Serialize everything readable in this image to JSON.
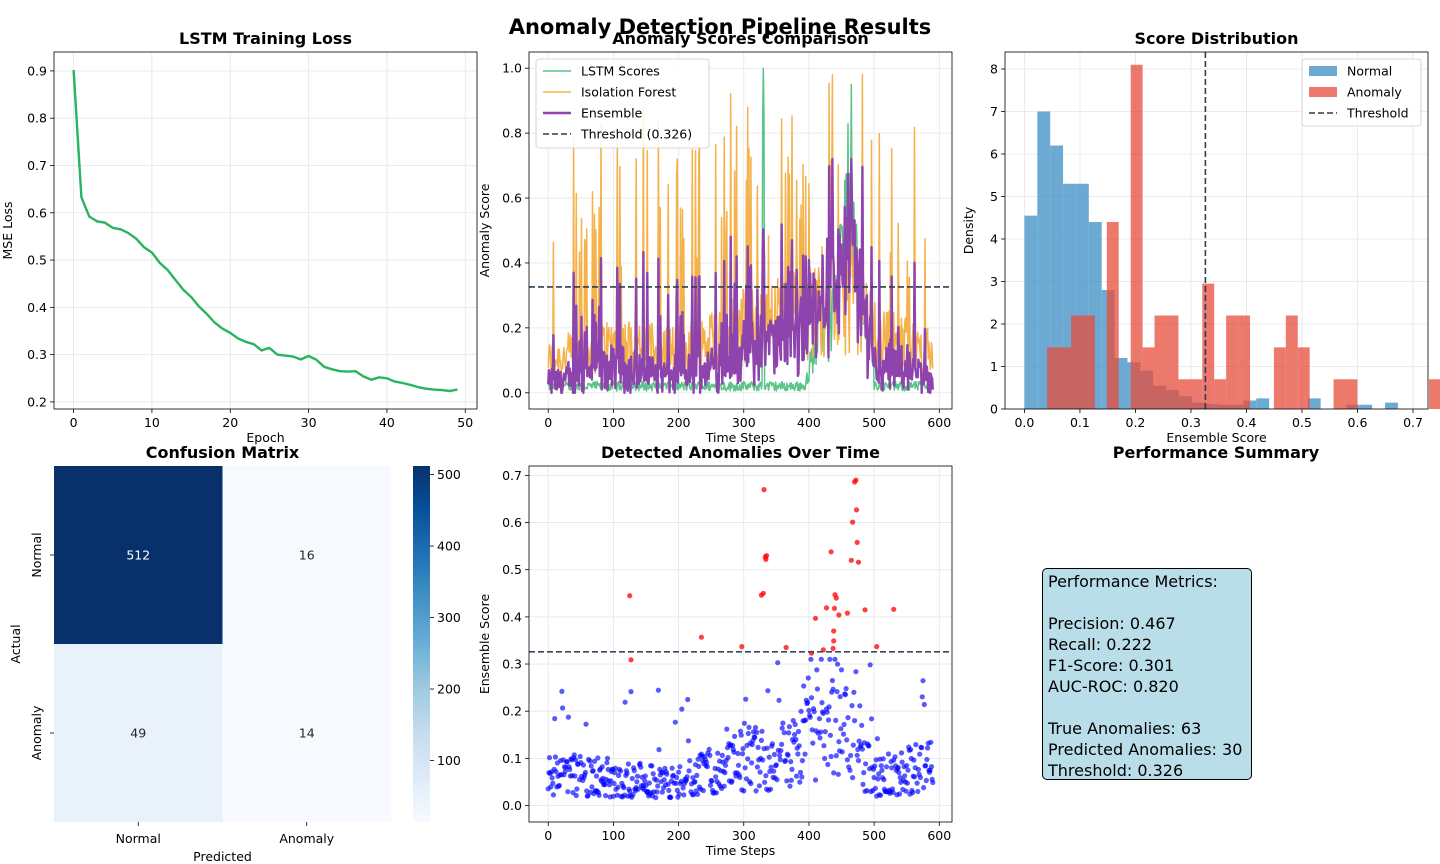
{
  "figure": {
    "title": "Anomaly Detection Pipeline Results"
  },
  "panels": {
    "loss": {
      "title": "LSTM Training Loss",
      "xlabel": "Epoch",
      "ylabel": "MSE Loss"
    },
    "scores": {
      "title": "Anomaly Scores Comparison",
      "xlabel": "Time Steps",
      "ylabel": "Anomaly Score"
    },
    "dist": {
      "title": "Score Distribution",
      "xlabel": "Ensemble Score",
      "ylabel": "Density"
    },
    "cm": {
      "title": "Confusion Matrix",
      "xlabel": "Predicted",
      "ylabel": "Actual"
    },
    "detected": {
      "title": "Detected Anomalies Over Time",
      "xlabel": "Time Steps",
      "ylabel": "Ensemble Score"
    },
    "summary": {
      "title": "Performance Summary",
      "lines": [
        "Performance Metrics:",
        "",
        "Precision: 0.467",
        "Recall: 0.222",
        "F1-Score: 0.301",
        "AUC-ROC: 0.820",
        "",
        "True Anomalies: 63",
        "Predicted Anomalies: 30",
        "Threshold: 0.326"
      ]
    }
  },
  "chart_data": [
    {
      "id": "loss",
      "type": "line",
      "title": "LSTM Training Loss",
      "xlabel": "Epoch",
      "ylabel": "MSE Loss",
      "xlim": [
        -2.5,
        51.5
      ],
      "ylim": [
        0.185,
        0.94
      ],
      "xticks": [
        0,
        10,
        20,
        30,
        40,
        50
      ],
      "yticks": [
        0.2,
        0.3,
        0.4,
        0.5,
        0.6,
        0.7,
        0.8,
        0.9
      ],
      "grid": true,
      "color": "#2ab462",
      "x": [
        0,
        1,
        2,
        3,
        4,
        5,
        6,
        7,
        8,
        9,
        10,
        11,
        12,
        13,
        14,
        15,
        16,
        17,
        18,
        19,
        20,
        21,
        22,
        23,
        24,
        25,
        26,
        27,
        28,
        29,
        30,
        31,
        32,
        33,
        34,
        35,
        36,
        37,
        38,
        39,
        40,
        41,
        42,
        43,
        44,
        45,
        46,
        47,
        48,
        49
      ],
      "y": [
        0.902,
        0.633,
        0.592,
        0.582,
        0.579,
        0.568,
        0.565,
        0.557,
        0.545,
        0.527,
        0.516,
        0.494,
        0.479,
        0.458,
        0.437,
        0.422,
        0.402,
        0.386,
        0.368,
        0.355,
        0.346,
        0.334,
        0.327,
        0.322,
        0.309,
        0.314,
        0.3,
        0.298,
        0.296,
        0.29,
        0.297,
        0.289,
        0.274,
        0.269,
        0.265,
        0.264,
        0.265,
        0.254,
        0.247,
        0.252,
        0.25,
        0.243,
        0.24,
        0.236,
        0.231,
        0.228,
        0.226,
        0.225,
        0.223,
        0.226
      ]
    },
    {
      "id": "scores",
      "type": "line",
      "title": "Anomaly Scores Comparison",
      "xlabel": "Time Steps",
      "ylabel": "Anomaly Score",
      "xlim": [
        -29.5,
        619.5
      ],
      "ylim": [
        -0.05,
        1.05
      ],
      "xticks": [
        0,
        100,
        200,
        300,
        400,
        500,
        600
      ],
      "yticks": [
        0.0,
        0.2,
        0.4,
        0.6,
        0.8,
        1.0
      ],
      "grid": true,
      "legend": "top-left",
      "n_points": 591,
      "series": [
        {
          "name": "LSTM Scores",
          "color": "#5cc48a",
          "width": 1.5,
          "profile_x": [
            0,
            250,
            320,
            330,
            335,
            340,
            380,
            400,
            420,
            430,
            440,
            450,
            460,
            470,
            480,
            490,
            520,
            560,
            590
          ],
          "profile_y": [
            0.02,
            0.03,
            0.1,
            1.0,
            0.05,
            0.04,
            0.05,
            0.1,
            0.4,
            0.3,
            0.45,
            0.55,
            0.9,
            0.6,
            0.4,
            0.3,
            0.05,
            0.03,
            0.04
          ]
        },
        {
          "name": "Isolation Forest",
          "color": "#f5b24a",
          "width": 1.5,
          "profile_x": [
            0,
            100,
            200,
            300,
            400,
            470,
            500,
            590
          ],
          "profile_y": [
            0.1,
            0.15,
            0.13,
            0.2,
            0.25,
            0.3,
            0.18,
            0.12
          ]
        },
        {
          "name": "Ensemble",
          "color": "#8e44ad",
          "width": 2.4,
          "profile_x": [
            0,
            100,
            200,
            300,
            400,
            470,
            500,
            590
          ],
          "profile_y": [
            0.05,
            0.08,
            0.06,
            0.1,
            0.18,
            0.22,
            0.08,
            0.06
          ]
        }
      ],
      "threshold": {
        "name": "Threshold (0.326)",
        "value": 0.326,
        "color": "#2c3e50"
      }
    },
    {
      "id": "dist",
      "type": "histogram",
      "title": "Score Distribution",
      "xlabel": "Ensemble Score",
      "ylabel": "Density",
      "xlim": [
        -0.035,
        0.727
      ],
      "ylim": [
        0,
        8.4
      ],
      "xticks": [
        0.0,
        0.1,
        0.2,
        0.3,
        0.4,
        0.5,
        0.6,
        0.7
      ],
      "yticks": [
        0,
        1,
        2,
        3,
        4,
        5,
        6,
        7,
        8
      ],
      "grid": true,
      "legend": "top-right",
      "series": [
        {
          "name": "Normal",
          "color": "#3b8ec6",
          "opacity": 0.75,
          "bins_start": 0.0,
          "bin_width": 0.0232,
          "density": [
            4.55,
            7.0,
            6.2,
            5.3,
            5.3,
            4.4,
            2.8,
            1.2,
            1.1,
            0.9,
            0.55,
            0.45,
            0.3,
            0.15,
            0.12,
            0.1,
            0.1,
            0.2,
            0.25,
            0.0,
            0,
            0,
            0.25,
            0,
            0,
            0.1,
            0.1,
            0.0,
            0.15,
            0.0
          ]
        },
        {
          "name": "Anomaly",
          "color": "#e74c3c",
          "opacity": 0.75,
          "bins_start": 0.0409,
          "bin_width": 0.0215,
          "density": [
            1.45,
            1.45,
            2.2,
            2.2,
            0,
            4.4,
            0,
            8.1,
            1.45,
            2.2,
            2.2,
            0.7,
            0.7,
            2.95,
            0.7,
            2.2,
            2.2,
            0,
            0,
            1.45,
            2.2,
            1.45,
            0,
            0,
            0.7,
            0.7,
            0,
            0,
            0,
            0,
            0,
            0,
            0.7
          ]
        }
      ],
      "threshold": {
        "name": "Threshold",
        "value": 0.326,
        "color": "#2c3e50"
      }
    },
    {
      "id": "cm",
      "type": "heatmap",
      "title": "Confusion Matrix",
      "xlabel": "Predicted",
      "ylabel": "Actual",
      "row_labels": [
        "Normal",
        "Anomaly"
      ],
      "col_labels": [
        "Normal",
        "Anomaly"
      ],
      "values": [
        [
          512,
          16
        ],
        [
          49,
          14
        ]
      ],
      "colorbar": {
        "min": 14,
        "max": 512,
        "ticks": [
          100,
          200,
          300,
          400,
          500
        ],
        "colormap": "Blues"
      }
    },
    {
      "id": "detected",
      "type": "scatter",
      "title": "Detected Anomalies Over Time",
      "xlabel": "Time Steps",
      "ylabel": "Ensemble Score",
      "xlim": [
        -29.5,
        619.5
      ],
      "ylim": [
        -0.035,
        0.72
      ],
      "xticks": [
        0,
        100,
        200,
        300,
        400,
        500,
        600
      ],
      "yticks": [
        0.0,
        0.1,
        0.2,
        0.3,
        0.4,
        0.5,
        0.6,
        0.7
      ],
      "grid": true,
      "normal_color": "#0000ff",
      "anomaly_color": "#ff0000",
      "threshold": {
        "value": 0.326,
        "color": "#34495e"
      },
      "anomalies": [
        [
          125,
          0.445
        ],
        [
          127,
          0.309
        ],
        [
          235,
          0.357
        ],
        [
          297,
          0.337
        ],
        [
          327,
          0.446
        ],
        [
          330,
          0.45
        ],
        [
          331,
          0.67
        ],
        [
          333,
          0.527
        ],
        [
          334,
          0.522
        ],
        [
          335,
          0.53
        ],
        [
          365,
          0.335
        ],
        [
          404,
          0.323
        ],
        [
          410,
          0.397
        ],
        [
          422,
          0.33
        ],
        [
          427,
          0.419
        ],
        [
          434,
          0.538
        ],
        [
          437,
          0.333
        ],
        [
          438,
          0.349
        ],
        [
          438,
          0.37
        ],
        [
          439,
          0.418
        ],
        [
          440,
          0.447
        ],
        [
          442,
          0.44
        ],
        [
          446,
          0.404
        ],
        [
          459,
          0.408
        ],
        [
          465,
          0.52
        ],
        [
          467,
          0.601
        ],
        [
          470,
          0.686
        ],
        [
          472,
          0.69
        ],
        [
          473,
          0.627
        ],
        [
          474,
          0.558
        ],
        [
          476,
          0.516
        ],
        [
          486,
          0.415
        ],
        [
          504,
          0.337
        ],
        [
          530,
          0.416
        ]
      ]
    }
  ]
}
